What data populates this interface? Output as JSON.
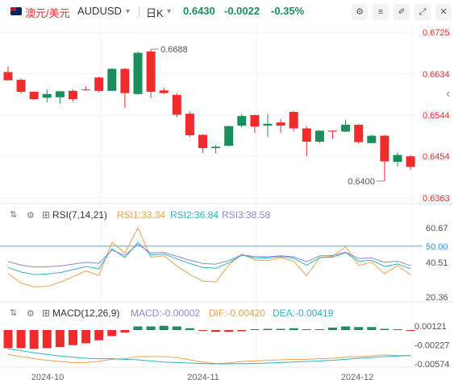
{
  "header": {
    "pair_cn": "澳元/美元",
    "pair_code": "AUDUSD",
    "dropdown_icon": "▾",
    "period": "日K",
    "period_dropdown_icon": "▾",
    "price": "0.6430",
    "change": "-0.0022",
    "change_pct": "-0.35%",
    "up_color": "#ef2b2b",
    "down_color": "#1a8f5c",
    "buttons": [
      {
        "name": "settings-icon",
        "glyph": "⚙"
      },
      {
        "name": "sliders-icon",
        "glyph": "≡"
      },
      {
        "name": "drawing-tools-icon",
        "glyph": "✐"
      },
      {
        "name": "fullscreen-icon",
        "glyph": "⤢"
      },
      {
        "name": "close-icon",
        "glyph": "✕"
      }
    ]
  },
  "chart_data": [
    {
      "type": "candlestick",
      "title": "AUDUSD 日K",
      "x_axis_labels": [
        "2024-10",
        "2024-11",
        "2024-12"
      ],
      "y_ticks": [
        "0.6725",
        "0.6634",
        "0.6544",
        "0.6454",
        "0.6363"
      ],
      "ylim": [
        0.6363,
        0.6725
      ],
      "annotations": [
        {
          "text": "0.6688",
          "value": 0.6688,
          "at": "high"
        },
        {
          "text": "0.6400",
          "value": 0.64,
          "at": "low"
        }
      ],
      "candles": [
        {
          "o": 0.6638,
          "h": 0.665,
          "l": 0.662,
          "c": 0.662
        },
        {
          "o": 0.6621,
          "h": 0.6624,
          "l": 0.6591,
          "c": 0.6595
        },
        {
          "o": 0.6595,
          "h": 0.6596,
          "l": 0.6577,
          "c": 0.6579
        },
        {
          "o": 0.6582,
          "h": 0.66,
          "l": 0.6572,
          "c": 0.659
        },
        {
          "o": 0.6583,
          "h": 0.6597,
          "l": 0.6569,
          "c": 0.6596
        },
        {
          "o": 0.6597,
          "h": 0.66,
          "l": 0.6574,
          "c": 0.6579
        },
        {
          "o": 0.66,
          "h": 0.6607,
          "l": 0.6597,
          "c": 0.6599
        },
        {
          "o": 0.6626,
          "h": 0.6628,
          "l": 0.6594,
          "c": 0.6597
        },
        {
          "o": 0.6597,
          "h": 0.6647,
          "l": 0.6597,
          "c": 0.6645
        },
        {
          "o": 0.6645,
          "h": 0.6647,
          "l": 0.656,
          "c": 0.6592
        },
        {
          "o": 0.659,
          "h": 0.6683,
          "l": 0.6589,
          "c": 0.668
        },
        {
          "o": 0.6683,
          "h": 0.6688,
          "l": 0.6581,
          "c": 0.6595
        },
        {
          "o": 0.6598,
          "h": 0.6604,
          "l": 0.659,
          "c": 0.6592
        },
        {
          "o": 0.6588,
          "h": 0.6592,
          "l": 0.654,
          "c": 0.6545
        },
        {
          "o": 0.6547,
          "h": 0.6552,
          "l": 0.6496,
          "c": 0.65
        },
        {
          "o": 0.6501,
          "h": 0.6502,
          "l": 0.6461,
          "c": 0.6472
        },
        {
          "o": 0.6472,
          "h": 0.6478,
          "l": 0.646,
          "c": 0.6475
        },
        {
          "o": 0.6477,
          "h": 0.6521,
          "l": 0.6476,
          "c": 0.652
        },
        {
          "o": 0.6521,
          "h": 0.6546,
          "l": 0.6517,
          "c": 0.6542
        },
        {
          "o": 0.6544,
          "h": 0.6545,
          "l": 0.6505,
          "c": 0.6519
        },
        {
          "o": 0.6521,
          "h": 0.6546,
          "l": 0.6496,
          "c": 0.6525
        },
        {
          "o": 0.6528,
          "h": 0.6535,
          "l": 0.6505,
          "c": 0.6521
        },
        {
          "o": 0.6551,
          "h": 0.6553,
          "l": 0.6509,
          "c": 0.6515
        },
        {
          "o": 0.6515,
          "h": 0.6519,
          "l": 0.6454,
          "c": 0.6486
        },
        {
          "o": 0.6486,
          "h": 0.6511,
          "l": 0.6483,
          "c": 0.651
        },
        {
          "o": 0.651,
          "h": 0.6511,
          "l": 0.6492,
          "c": 0.6508
        },
        {
          "o": 0.6508,
          "h": 0.6534,
          "l": 0.6507,
          "c": 0.6523
        },
        {
          "o": 0.6523,
          "h": 0.6524,
          "l": 0.6482,
          "c": 0.6485
        },
        {
          "o": 0.6483,
          "h": 0.6501,
          "l": 0.6482,
          "c": 0.6499
        },
        {
          "o": 0.6499,
          "h": 0.6501,
          "l": 0.64,
          "c": 0.6443
        },
        {
          "o": 0.6442,
          "h": 0.6463,
          "l": 0.6432,
          "c": 0.6457
        },
        {
          "o": 0.6454,
          "h": 0.6457,
          "l": 0.6425,
          "c": 0.6431
        }
      ]
    },
    {
      "type": "line",
      "title": "RSI(7,14,21)",
      "ylim": [
        20.36,
        60.67
      ],
      "y_ticks": [
        "60.67",
        "50.00",
        "40.51",
        "20.36"
      ],
      "reference_line": 50,
      "series": [
        {
          "name": "RSI1",
          "label": "RSI1:33.34",
          "color": "#f0a04b",
          "values": [
            34.0,
            28.5,
            26.3,
            26.6,
            29.0,
            32.1,
            35.6,
            32.9,
            52.2,
            46.0,
            60.6,
            43.5,
            44.4,
            38.5,
            33.5,
            29.6,
            29.2,
            39.0,
            45.4,
            42.0,
            41.6,
            43.3,
            41.2,
            32.7,
            43.4,
            44.0,
            49.7,
            38.6,
            40.8,
            33.9,
            38.7,
            33.3
          ]
        },
        {
          "name": "RSI2",
          "label": "RSI2:36.84",
          "color": "#2bb3c8",
          "values": [
            37.5,
            35.0,
            33.4,
            33.8,
            34.6,
            36.3,
            38.1,
            36.9,
            48.5,
            43.3,
            52.2,
            44.8,
            45.4,
            42.6,
            39.9,
            37.6,
            37.1,
            40.3,
            44.7,
            43.2,
            43.1,
            43.9,
            43.0,
            38.9,
            43.3,
            43.6,
            46.2,
            41.2,
            41.8,
            38.2,
            39.6,
            36.8
          ]
        },
        {
          "name": "RSI3",
          "label": "RSI3:38.58",
          "color": "#8f86d0",
          "values": [
            41.0,
            39.0,
            37.8,
            38.0,
            38.4,
            39.5,
            40.6,
            40.0,
            47.7,
            44.7,
            51.0,
            46.0,
            46.3,
            44.1,
            41.8,
            39.9,
            39.5,
            41.6,
            44.9,
            43.9,
            43.8,
            44.4,
            43.8,
            40.9,
            44.3,
            44.5,
            46.4,
            42.8,
            43.2,
            40.5,
            41.3,
            38.6
          ]
        }
      ]
    },
    {
      "type": "bar+line",
      "title": "MACD(12,26,9)",
      "ylim": [
        -0.00574,
        0.00121
      ],
      "y_ticks": [
        "0.00121",
        "-0.00227",
        "-0.00574"
      ],
      "series": [
        {
          "name": "MACD",
          "label": "MACD:-0.00002",
          "color": "#8f86d0",
          "values": [
            0.0011,
            0.0011,
            0.001,
            0.0011,
            0.001,
            0.001,
            0.001,
            0.0009,
            0.0008,
            0.0007,
            0.0005,
            0.0004,
            0.0003,
            0.0003,
            0.0004,
            0.0005,
            0.0006,
            0.0006,
            0.0005,
            0.0005,
            0.0004,
            0.0004,
            0.0003,
            0.0003,
            0.0003,
            0.0002,
            0.0002,
            0.0001,
            0.0001,
            0.0,
            0.0,
            -2e-05
          ]
        },
        {
          "name": "DIF",
          "label": "DIF:-0.00420",
          "color": "#f0a04b",
          "values": [
            -0.004,
            -0.0044,
            -0.0048,
            -0.0051,
            -0.0053,
            -0.0055,
            -0.0055,
            -0.0053,
            -0.0049,
            -0.0048,
            -0.0044,
            -0.0044,
            -0.0044,
            -0.0046,
            -0.005,
            -0.0054,
            -0.0057,
            -0.0056,
            -0.0053,
            -0.0052,
            -0.0051,
            -0.005,
            -0.0049,
            -0.0049,
            -0.0048,
            -0.0047,
            -0.0045,
            -0.0044,
            -0.0043,
            -0.0041,
            -0.0042,
            -0.0042
          ]
        },
        {
          "name": "DEA",
          "label": "DEA:-0.00419",
          "color": "#2bb3c8",
          "values": [
            -0.003,
            -0.0033,
            -0.0037,
            -0.004,
            -0.0043,
            -0.0045,
            -0.0047,
            -0.0048,
            -0.0048,
            -0.0049,
            -0.005,
            -0.0052,
            -0.0054,
            -0.0055,
            -0.0056,
            -0.0057,
            -0.0058,
            -0.0058,
            -0.0057,
            -0.0057,
            -0.0056,
            -0.0055,
            -0.0054,
            -0.0053,
            -0.0052,
            -0.0051,
            -0.0049,
            -0.0047,
            -0.0046,
            -0.0044,
            -0.0043,
            -0.0042
          ]
        }
      ]
    }
  ]
}
